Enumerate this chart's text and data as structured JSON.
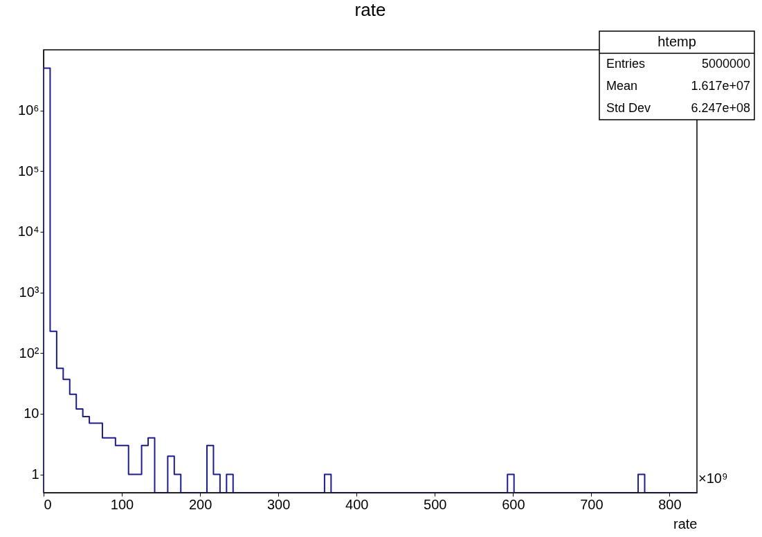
{
  "chart_data": {
    "type": "histogram",
    "title": "rate",
    "xlabel": "rate",
    "color": "#1a1aa6",
    "bins": [
      0,
      8.35,
      16.7,
      25.05,
      33.4,
      41.75,
      50.1,
      58.45,
      66.8,
      75.15,
      83.5,
      91.85,
      100.2,
      108.55,
      116.9,
      125.25,
      133.6,
      141.95,
      150.3,
      158.65,
      167,
      175.35,
      183.7,
      192.05,
      200.4,
      208.75,
      217.1,
      225.45,
      233.8,
      242.15,
      250.5,
      258.85,
      267.2,
      275.55,
      283.9,
      292.25,
      300.6,
      308.95,
      317.3,
      325.65,
      334,
      342.35,
      350.7,
      359.05,
      367.4,
      375.75,
      384.1,
      392.45,
      400.8,
      409.15,
      417.5,
      425.85,
      434.2,
      442.55,
      450.9,
      459.25,
      467.6,
      475.95,
      484.3,
      492.65,
      501,
      509.35,
      517.7,
      526.05,
      534.4,
      542.75,
      551.1,
      559.45,
      567.8,
      576.15,
      584.5,
      592.85,
      601.2,
      609.55,
      617.9,
      626.25,
      634.6,
      642.95,
      651.3,
      659.65,
      668,
      676.35,
      684.7,
      693.05,
      701.4,
      709.75,
      718.1,
      726.45,
      734.8,
      743.15,
      751.5,
      759.85,
      768.2,
      776.55,
      784.9,
      793.25,
      801.6,
      809.95,
      818.3,
      826.65,
      835
    ],
    "values": [
      4999588,
      229,
      56,
      37,
      21,
      12,
      9,
      7,
      7,
      4,
      4,
      3,
      3,
      1,
      1,
      3,
      4,
      null,
      null,
      2,
      1,
      null,
      null,
      null,
      null,
      3,
      1,
      null,
      1,
      null,
      null,
      null,
      null,
      null,
      null,
      null,
      null,
      null,
      null,
      null,
      null,
      null,
      null,
      1,
      null,
      null,
      null,
      null,
      null,
      null,
      null,
      null,
      null,
      null,
      null,
      null,
      null,
      null,
      null,
      null,
      null,
      null,
      null,
      null,
      null,
      null,
      null,
      null,
      null,
      null,
      null,
      1,
      null,
      null,
      null,
      null,
      null,
      null,
      null,
      null,
      null,
      null,
      null,
      null,
      null,
      null,
      null,
      null,
      null,
      null,
      null,
      1,
      null,
      null,
      null,
      null,
      null,
      null,
      null,
      null
    ],
    "log": true,
    "grid": false,
    "xlim": [
      0,
      835
    ],
    "xticks": [
      0,
      100,
      200,
      300,
      400,
      500,
      600,
      700,
      800
    ],
    "ylim": [
      0.5,
      10000000
    ],
    "yticks": [
      1,
      10,
      {
        "value": 100,
        "label": "10²"
      },
      {
        "value": 1000,
        "label": "10³"
      },
      {
        "value": 10000,
        "label": "10⁴"
      },
      {
        "value": 100000,
        "label": "10⁵"
      },
      {
        "value": 1000000,
        "label": "10⁶"
      }
    ],
    "annotations": [
      "htemp",
      "Entries",
      "5000000",
      "Mean",
      "1.617e+07",
      "Std Dev",
      "6.247e+08",
      "×10⁹"
    ]
  }
}
